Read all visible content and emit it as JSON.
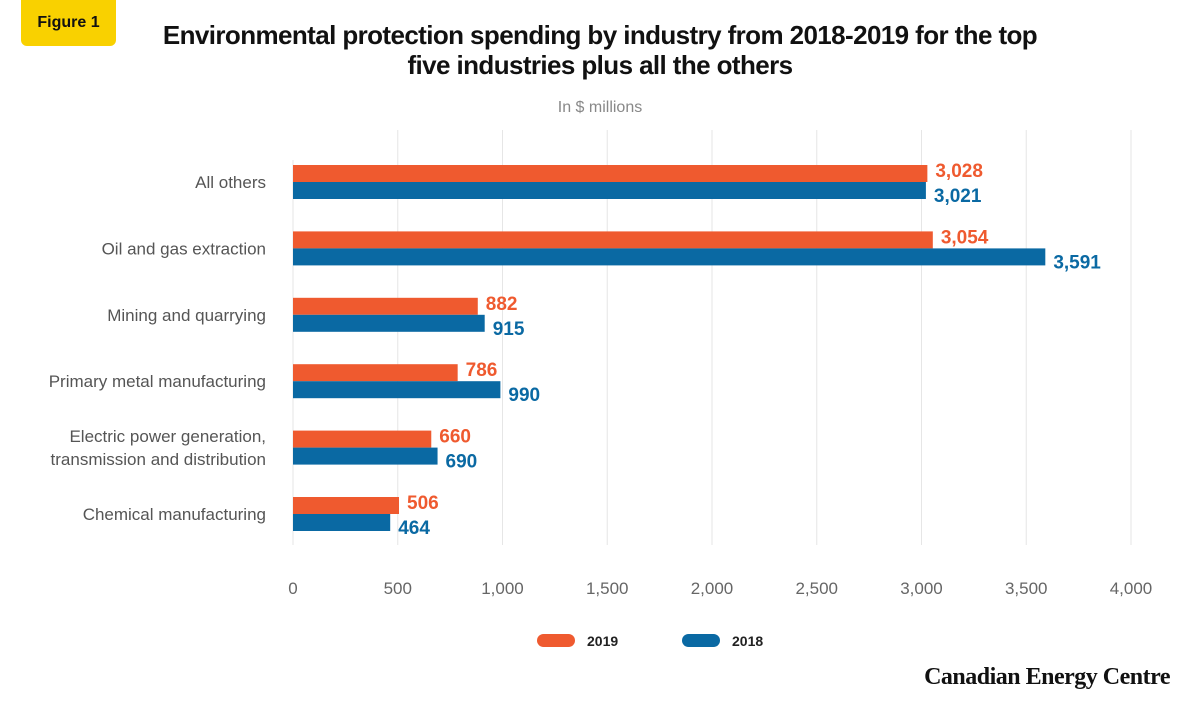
{
  "badge": "Figure 1",
  "logo": "Canadian Energy Centre",
  "chart_data": {
    "type": "bar",
    "orientation": "horizontal",
    "title": "Environmental protection spending by industry from 2018-2019 for the top five industries plus all the others",
    "subtitle": "In $ millions",
    "categories": [
      "All others",
      "Oil and gas extraction",
      "Mining and quarrying",
      "Primary metal manufacturing",
      "Electric power generation, transmission and distribution",
      "Chemical manufacturing"
    ],
    "series": [
      {
        "name": "2019",
        "color": "#ef5a2f",
        "values": [
          3028,
          3054,
          882,
          786,
          660,
          506
        ],
        "labels": [
          "3,028",
          "3,054",
          "882",
          "786",
          "660",
          "506"
        ]
      },
      {
        "name": "2018",
        "color": "#0a69a3",
        "values": [
          3021,
          3591,
          915,
          990,
          690,
          464
        ],
        "labels": [
          "3,021",
          "3,591",
          "915",
          "990",
          "690",
          "464"
        ]
      }
    ],
    "xlim": [
      0,
      4000
    ],
    "xticks": [
      0,
      500,
      1000,
      1500,
      2000,
      2500,
      3000,
      3500,
      4000
    ],
    "xtick_labels": [
      "0",
      "500",
      "1,000",
      "1,500",
      "2,000",
      "2,500",
      "3,000",
      "3,500",
      "4,000"
    ],
    "grid": true,
    "legend": "bottom"
  }
}
